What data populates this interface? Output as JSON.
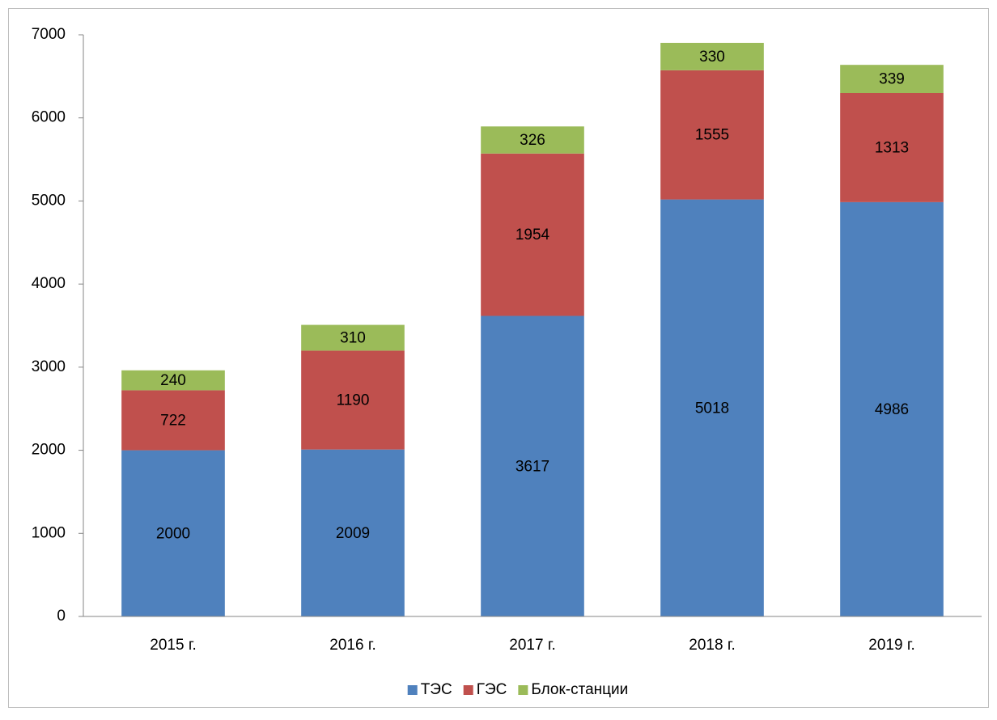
{
  "chart_data": {
    "type": "bar",
    "stacked": true,
    "categories": [
      "2015 г.",
      "2016 г.",
      "2017 г.",
      "2018 г.",
      "2019 г."
    ],
    "series": [
      {
        "name": "ТЭС",
        "color": "#4f81bd",
        "values": [
          2000,
          2009,
          3617,
          5018,
          4986
        ]
      },
      {
        "name": "ГЭС",
        "color": "#c0504d",
        "values": [
          722,
          1190,
          1954,
          1555,
          1313
        ]
      },
      {
        "name": "Блок-станции",
        "color": "#9bbb59",
        "values": [
          240,
          310,
          326,
          330,
          339
        ]
      }
    ],
    "ylim": [
      0,
      7000
    ],
    "yticks": [
      0,
      1000,
      2000,
      3000,
      4000,
      5000,
      6000,
      7000
    ],
    "grid": false,
    "legend": "bottom"
  }
}
